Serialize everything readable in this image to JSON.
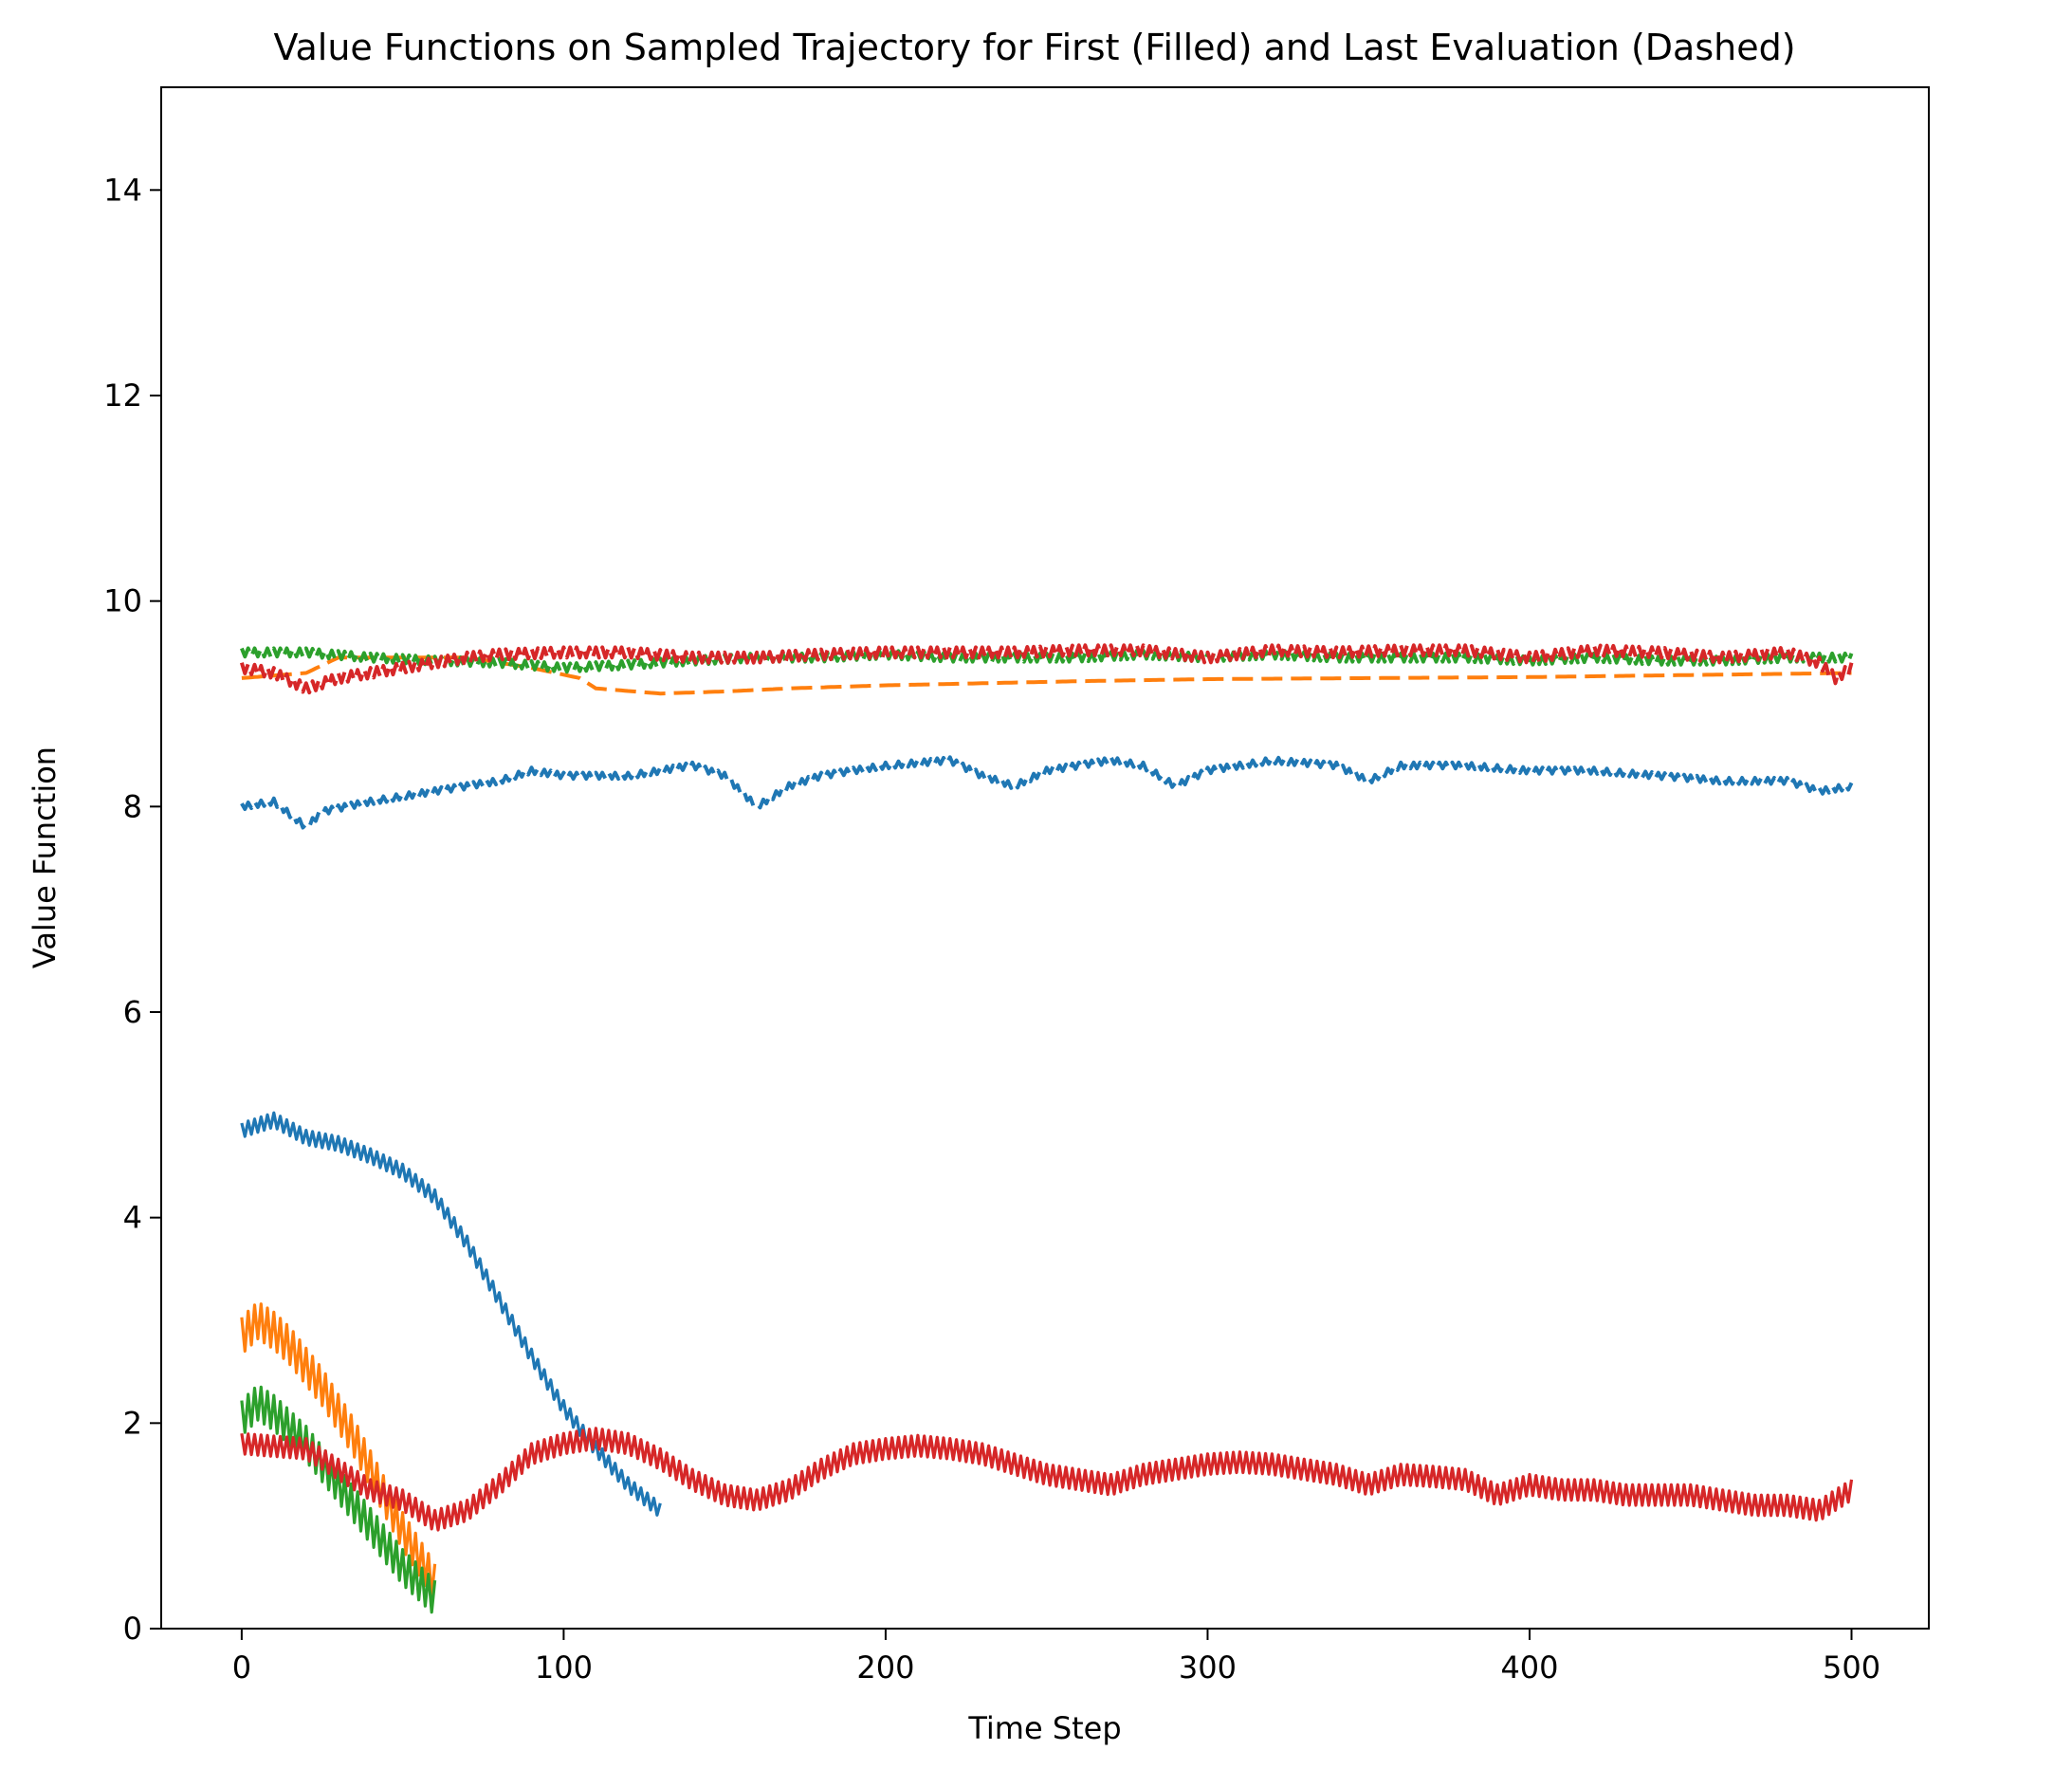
{
  "chart_data": {
    "type": "line",
    "title": "Value Functions on Sampled Trajectory for First (Filled) and Last Evaluation (Dashed)",
    "xlabel": "Time Step",
    "ylabel": "Value Function",
    "xlim": [
      -25,
      524
    ],
    "ylim": [
      0,
      15
    ],
    "xticks": [
      0,
      100,
      200,
      300,
      400,
      500
    ],
    "yticks": [
      0,
      2,
      4,
      6,
      8,
      10,
      12,
      14
    ],
    "legend": "none",
    "grid": false,
    "series": [
      {
        "style": "solid",
        "color": "#1f77b4",
        "amplitude": 0.07,
        "x": [
          0,
          10,
          20,
          30,
          40,
          50,
          60,
          70,
          80,
          90,
          100,
          110,
          120,
          130
        ],
        "y": [
          4.85,
          4.95,
          4.78,
          4.72,
          4.6,
          4.45,
          4.2,
          3.75,
          3.2,
          2.65,
          2.15,
          1.75,
          1.4,
          1.15
        ]
      },
      {
        "style": "solid",
        "color": "#ff7f0e",
        "amplitude": 0.18,
        "x": [
          0,
          5,
          10,
          15,
          20,
          25,
          30,
          35,
          40,
          45,
          50,
          55,
          60
        ],
        "y": [
          2.85,
          3.0,
          2.9,
          2.75,
          2.55,
          2.35,
          2.1,
          1.85,
          1.55,
          1.25,
          0.95,
          0.7,
          0.45
        ]
      },
      {
        "style": "solid",
        "color": "#2ca02c",
        "amplitude": 0.17,
        "x": [
          0,
          5,
          10,
          15,
          20,
          25,
          30,
          35,
          40,
          45,
          50,
          55,
          60
        ],
        "y": [
          2.05,
          2.2,
          2.1,
          1.95,
          1.8,
          1.6,
          1.4,
          1.2,
          1.0,
          0.8,
          0.6,
          0.45,
          0.3
        ]
      },
      {
        "style": "solid",
        "color": "#d62728",
        "amplitude": 0.1,
        "x": [
          0,
          20,
          40,
          50,
          60,
          70,
          80,
          90,
          100,
          110,
          120,
          130,
          140,
          150,
          160,
          170,
          180,
          190,
          200,
          210,
          220,
          230,
          240,
          250,
          260,
          270,
          280,
          290,
          300,
          310,
          320,
          330,
          340,
          350,
          360,
          370,
          380,
          390,
          400,
          410,
          420,
          430,
          440,
          450,
          460,
          470,
          480,
          490,
          500
        ],
        "y": [
          1.8,
          1.75,
          1.35,
          1.25,
          1.05,
          1.15,
          1.4,
          1.7,
          1.8,
          1.85,
          1.8,
          1.65,
          1.45,
          1.3,
          1.25,
          1.35,
          1.55,
          1.7,
          1.75,
          1.78,
          1.75,
          1.7,
          1.6,
          1.5,
          1.45,
          1.4,
          1.5,
          1.55,
          1.6,
          1.62,
          1.6,
          1.55,
          1.5,
          1.4,
          1.5,
          1.48,
          1.45,
          1.3,
          1.4,
          1.35,
          1.35,
          1.3,
          1.3,
          1.3,
          1.25,
          1.2,
          1.2,
          1.15,
          1.35
        ]
      },
      {
        "style": "dashed",
        "color": "#1f77b4",
        "amplitude": 0.03,
        "x": [
          0,
          10,
          20,
          25,
          40,
          60,
          80,
          90,
          100,
          120,
          140,
          150,
          160,
          170,
          180,
          200,
          220,
          230,
          240,
          250,
          270,
          280,
          290,
          300,
          320,
          340,
          350,
          360,
          380,
          400,
          420,
          440,
          460,
          470,
          480,
          490,
          500
        ],
        "y": [
          8.0,
          8.05,
          7.8,
          7.95,
          8.05,
          8.15,
          8.25,
          8.35,
          8.3,
          8.3,
          8.4,
          8.3,
          8.0,
          8.2,
          8.3,
          8.4,
          8.45,
          8.3,
          8.2,
          8.35,
          8.45,
          8.4,
          8.2,
          8.35,
          8.45,
          8.4,
          8.25,
          8.4,
          8.4,
          8.35,
          8.35,
          8.3,
          8.25,
          8.25,
          8.25,
          8.15,
          8.2
        ]
      },
      {
        "style": "dashed",
        "color": "#ff7f0e",
        "amplitude": 0.0,
        "x": [
          0,
          20,
          30,
          50,
          70,
          90,
          105,
          110,
          130,
          150,
          170,
          200,
          230,
          260,
          300,
          350,
          400,
          450,
          500
        ],
        "y": [
          9.25,
          9.3,
          9.45,
          9.45,
          9.45,
          9.35,
          9.25,
          9.15,
          9.1,
          9.12,
          9.15,
          9.18,
          9.2,
          9.22,
          9.24,
          9.25,
          9.26,
          9.28,
          9.3
        ]
      },
      {
        "style": "dashed",
        "color": "#2ca02c",
        "amplitude": 0.04,
        "x": [
          0,
          20,
          40,
          60,
          80,
          100,
          120,
          140,
          160,
          180,
          200,
          220,
          240,
          260,
          280,
          300,
          320,
          340,
          360,
          380,
          400,
          420,
          440,
          460,
          480,
          500
        ],
        "y": [
          9.5,
          9.5,
          9.45,
          9.42,
          9.4,
          9.35,
          9.38,
          9.42,
          9.45,
          9.45,
          9.48,
          9.45,
          9.45,
          9.45,
          9.48,
          9.45,
          9.48,
          9.45,
          9.45,
          9.45,
          9.42,
          9.45,
          9.42,
          9.42,
          9.45,
          9.45
        ]
      },
      {
        "style": "dashed",
        "color": "#d62728",
        "amplitude": 0.05,
        "x": [
          0,
          10,
          20,
          30,
          40,
          50,
          60,
          70,
          80,
          100,
          120,
          140,
          160,
          180,
          200,
          220,
          240,
          260,
          280,
          300,
          320,
          340,
          360,
          380,
          400,
          420,
          440,
          460,
          480,
          490,
          495,
          500
        ],
        "y": [
          9.35,
          9.3,
          9.15,
          9.25,
          9.3,
          9.35,
          9.4,
          9.45,
          9.48,
          9.5,
          9.5,
          9.45,
          9.45,
          9.48,
          9.5,
          9.5,
          9.5,
          9.52,
          9.52,
          9.45,
          9.52,
          9.5,
          9.52,
          9.52,
          9.45,
          9.52,
          9.5,
          9.45,
          9.5,
          9.4,
          9.25,
          9.35
        ]
      }
    ]
  }
}
